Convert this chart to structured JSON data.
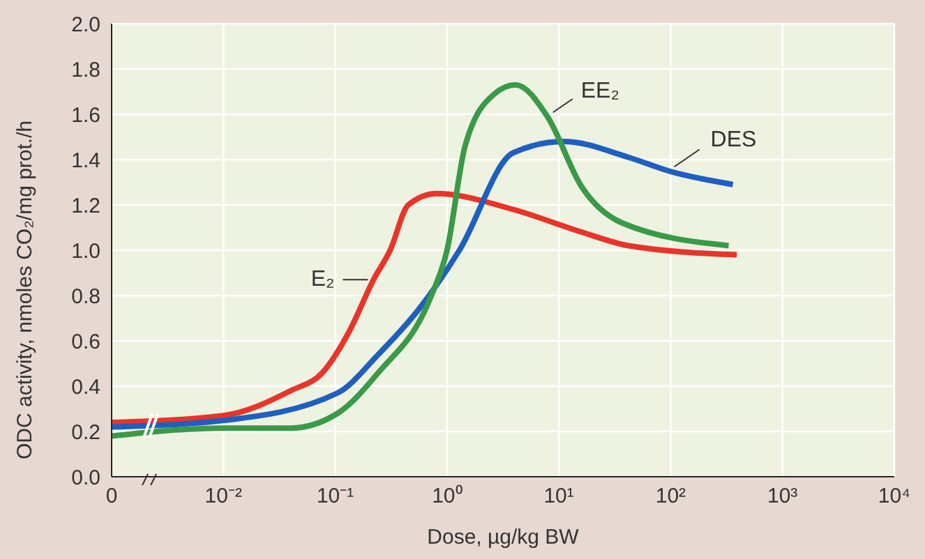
{
  "chart_data": {
    "type": "line",
    "xlabel": "Dose, µg/kg BW",
    "ylabel": "ODC activity, nmoles CO₂/mg prot./h",
    "log": "x",
    "grid": true,
    "legend": false,
    "marker": "none",
    "line_style": "solid",
    "xlim": [
      0.001,
      10000
    ],
    "xticks": [
      {
        "value": 0.001,
        "label": "0"
      },
      {
        "value": 0.01,
        "label": "10⁻²"
      },
      {
        "value": 0.1,
        "label": "10⁻¹"
      },
      {
        "value": 1,
        "label": "10⁰"
      },
      {
        "value": 10,
        "label": "10¹"
      },
      {
        "value": 100,
        "label": "10²"
      },
      {
        "value": 1000,
        "label": "10³"
      },
      {
        "value": 10000,
        "label": "10⁴"
      }
    ],
    "ylim": [
      0,
      2
    ],
    "yticks": [
      {
        "value": 0,
        "label": "0.0"
      },
      0.2,
      0.4,
      0.6,
      0.8,
      {
        "value": 1,
        "label": "1.0"
      },
      1.2,
      1.4,
      1.6,
      1.8,
      {
        "value": 2,
        "label": "2.0"
      }
    ],
    "series": [
      {
        "name": "E₂",
        "color": "#e8352a",
        "x": [
          0.001,
          0.01,
          0.04,
          0.077,
          0.133,
          0.22,
          0.31,
          0.45,
          0.8,
          3.9,
          16,
          42,
          390
        ],
        "values": [
          0.24,
          0.27,
          0.38,
          0.46,
          0.64,
          0.87,
          1.0,
          1.2,
          1.25,
          1.18,
          1.08,
          1.02,
          0.98
        ]
      },
      {
        "name": "DES",
        "color": "#1f5fc0",
        "x": [
          0.001,
          0.0106,
          0.105,
          0.243,
          0.56,
          1.29,
          3.9,
          11,
          42,
          96,
          360
        ],
        "values": [
          0.22,
          0.25,
          0.37,
          0.54,
          0.74,
          1.0,
          1.43,
          1.48,
          1.41,
          1.35,
          1.29
        ]
      },
      {
        "name": "EE₂",
        "color": "#3a9a48",
        "x": [
          0.001,
          0.01,
          0.04,
          0.105,
          0.243,
          0.71,
          1.0,
          1.45,
          2.65,
          4.1,
          7.9,
          16,
          37,
          330
        ],
        "values": [
          0.18,
          0.215,
          0.215,
          0.28,
          0.46,
          0.79,
          1.0,
          1.46,
          1.69,
          1.73,
          1.59,
          1.28,
          1.12,
          1.02
        ]
      }
    ]
  }
}
